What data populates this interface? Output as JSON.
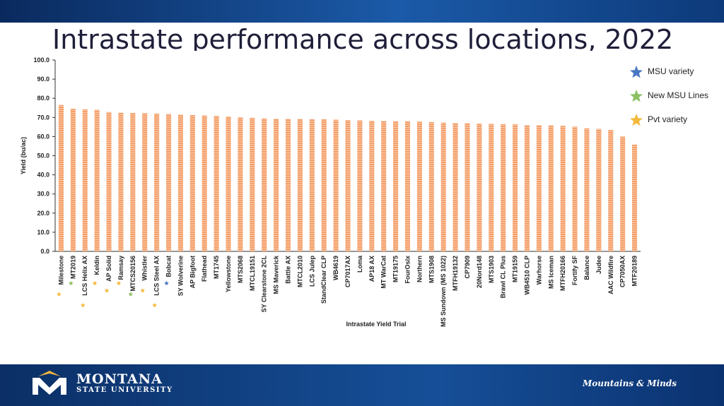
{
  "title": "Intrastate performance across locations, 2022",
  "legend": {
    "items": [
      {
        "label": "MSU variety",
        "color": "#4a78c2"
      },
      {
        "label": "New MSU Lines",
        "color": "#8cc063"
      },
      {
        "label": "Pvt variety",
        "color": "#f4b93c"
      }
    ]
  },
  "footer": {
    "logo_line1": "MONTANA",
    "logo_line2": "STATE UNIVERSITY",
    "tagline": "Mountains & Minds"
  },
  "chart_data": {
    "type": "bar",
    "xlabel": "Intrastate Yield Trial",
    "ylabel": "Yield (bu/ac)",
    "ylim": [
      0,
      100
    ],
    "yticks": [
      "0.0",
      "10.0",
      "20.0",
      "30.0",
      "40.0",
      "50.0",
      "60.0",
      "70.0",
      "80.0",
      "90.0",
      "100.0"
    ],
    "bar_color": "#f4a06a",
    "categories": [
      "Milestone",
      "MT2019",
      "LCS Helix AX",
      "Keldin",
      "AP Solid",
      "Ramsay",
      "MTCS20156",
      "Whistler",
      "LCS Steel AX",
      "Bobcat",
      "SY Wolverine",
      "AP Bigfoot",
      "Flathead",
      "MT1745",
      "Yellowstone",
      "MTS2068",
      "MTCL19151",
      "SY Clearstone 2CL",
      "MS Maverick",
      "Battle AX",
      "MTCL2010",
      "LCS Julep",
      "StandClear CLP",
      "WB4619",
      "CP7017AX",
      "Loma",
      "AP18 AX",
      "MT WarCat",
      "MT19175",
      "FourOsix",
      "Northern",
      "MTS1908",
      "MS Sundown (MS 1022)",
      "MTFH19132",
      "CP7909",
      "20Nord148",
      "MTS1903",
      "Brawl CL Plus",
      "MT19159",
      "WB4510 CLP",
      "Warhorse",
      "MS Iceman",
      "MTFH20166",
      "Fortify SF",
      "Balance",
      "Judee",
      "AAC Wildfire",
      "CP7050AX",
      "MTF20189"
    ],
    "values": [
      76.5,
      74.5,
      74.2,
      74.0,
      72.8,
      72.5,
      72.3,
      72.2,
      72.0,
      71.8,
      71.5,
      71.2,
      71.0,
      70.8,
      70.5,
      70.0,
      69.8,
      69.5,
      69.3,
      69.2,
      69.2,
      69.0,
      69.0,
      68.8,
      68.6,
      68.5,
      68.3,
      68.2,
      68.0,
      68.0,
      67.8,
      67.6,
      67.3,
      67.1,
      67.0,
      66.7,
      66.6,
      66.5,
      66.4,
      66.0,
      66.0,
      65.9,
      65.6,
      65.2,
      64.3,
      64.0,
      63.4,
      60.0,
      55.8
    ],
    "markers": [
      {
        "category": "Milestone",
        "type": "Pvt variety"
      },
      {
        "category": "MT2019",
        "type": "New MSU Lines"
      },
      {
        "category": "LCS Helix AX",
        "type": "Pvt variety"
      },
      {
        "category": "Keldin",
        "type": "Pvt variety"
      },
      {
        "category": "AP Solid",
        "type": "Pvt variety"
      },
      {
        "category": "Ramsay",
        "type": "Pvt variety"
      },
      {
        "category": "MTCS20156",
        "type": "New MSU Lines"
      },
      {
        "category": "Whistler",
        "type": "Pvt variety"
      },
      {
        "category": "LCS Steel AX",
        "type": "Pvt variety"
      },
      {
        "category": "Bobcat",
        "type": "MSU variety"
      }
    ]
  }
}
